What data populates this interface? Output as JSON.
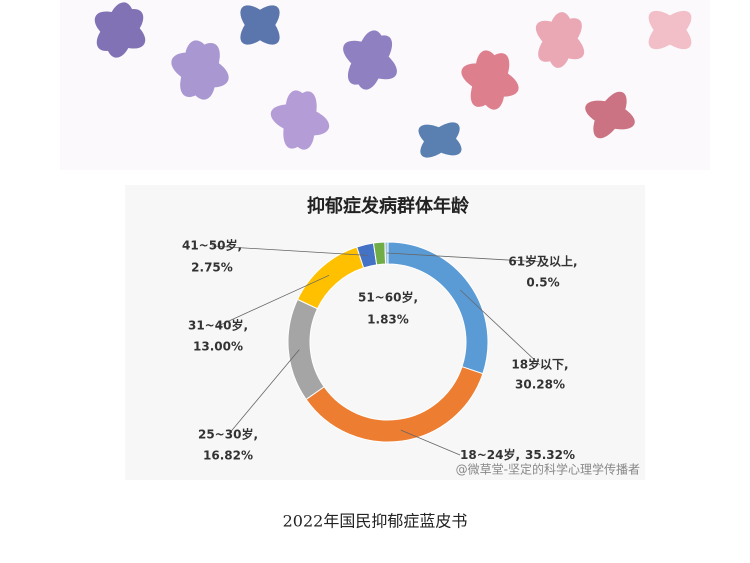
{
  "chart_data": {
    "type": "donut",
    "title": "抑郁症发病群体年龄",
    "categories": [
      "18岁以下,",
      "18~24岁,",
      "25~30岁,",
      "31~40岁,",
      "41~50岁,",
      "51~60岁,",
      "61岁及以上,"
    ],
    "values": [
      30.28,
      35.32,
      16.82,
      13.0,
      2.75,
      1.83,
      0.5
    ],
    "value_labels": [
      "30.28%",
      "35.32%",
      "16.82%",
      "13.00%",
      "2.75%",
      "1.83%",
      "0.5%"
    ],
    "colors": [
      "#5b9bd5",
      "#ed7d31",
      "#a5a5a5",
      "#ffc000",
      "#4472c4",
      "#70ad47",
      "#9dc3e6"
    ],
    "watermark": "@微草堂-坚定的科学心理学传播者",
    "caption": "2022年国民抑郁症蓝皮书"
  }
}
